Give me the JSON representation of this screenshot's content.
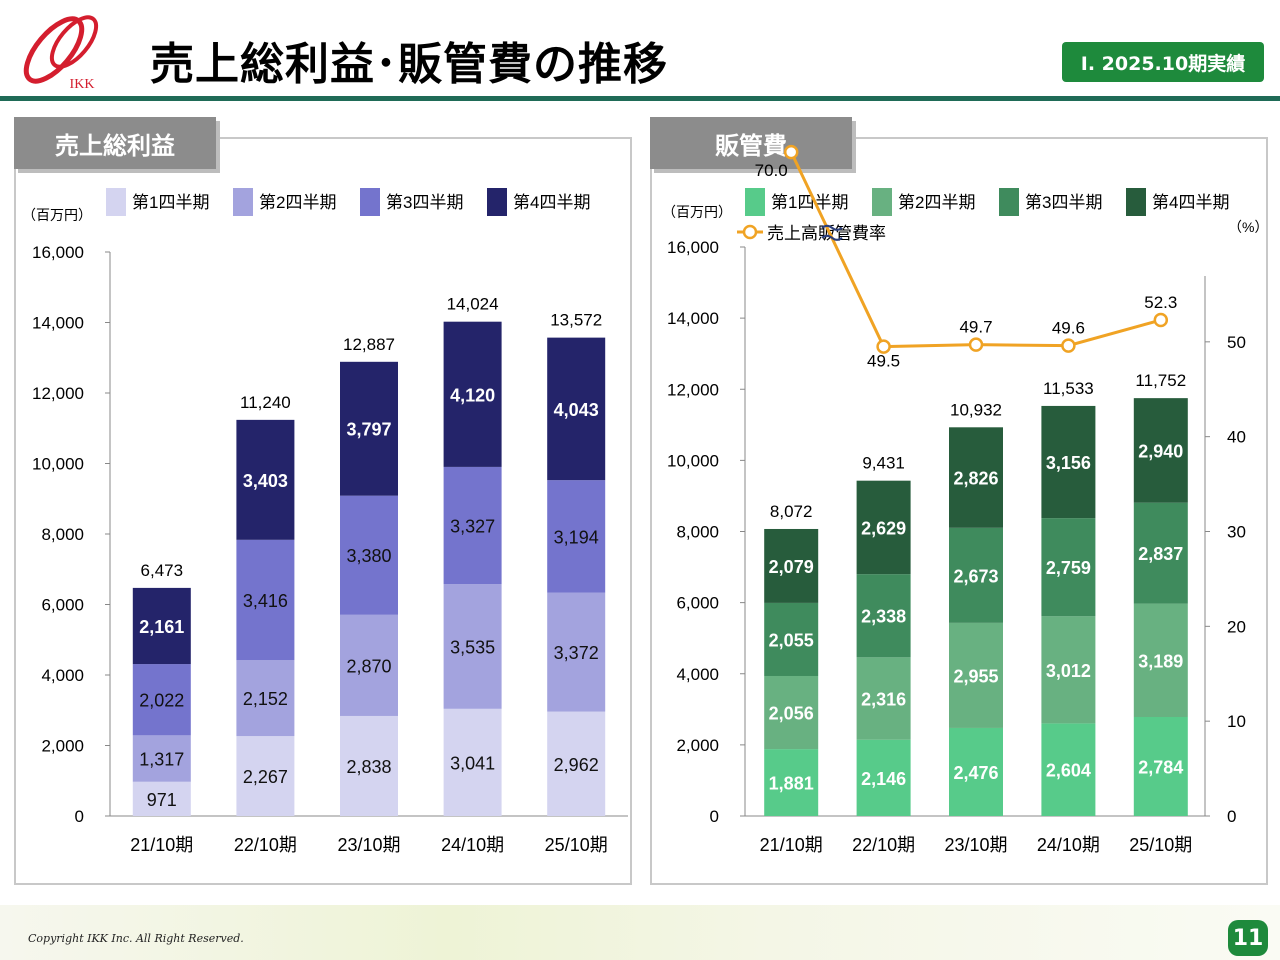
{
  "logo": {
    "text": "IKK"
  },
  "header": {
    "title": "売上総利益･販管費の推移",
    "badge": "Ⅰ. 2025.10期実績"
  },
  "footer": {
    "copyright": "Copyright IKK Inc. All Right Reserved.",
    "page_number": "11"
  },
  "colors": {
    "gross": [
      "#d4d4f0",
      "#a3a3de",
      "#7474cd",
      "#24246a"
    ],
    "sga": [
      "#57cb8a",
      "#68b181",
      "#3f8b5d",
      "#275c3c"
    ],
    "ratio_line": "#f0a324",
    "accent": "#1e8a3c"
  },
  "chart_data": [
    {
      "type": "bar",
      "title": "売上総利益",
      "unit_label": "（百万円）",
      "stacked": true,
      "categories": [
        "21/10期",
        "22/10期",
        "23/10期",
        "24/10期",
        "25/10期"
      ],
      "series": [
        {
          "name": "第1四半期",
          "values": [
            971,
            2267,
            2838,
            3041,
            2962
          ]
        },
        {
          "name": "第2四半期",
          "values": [
            1317,
            2152,
            2870,
            3535,
            3372
          ]
        },
        {
          "name": "第3四半期",
          "values": [
            2022,
            3416,
            3380,
            3327,
            3194
          ]
        },
        {
          "name": "第4四半期",
          "values": [
            2161,
            3403,
            3797,
            4120,
            4043
          ]
        }
      ],
      "totals": [
        6473,
        11240,
        12887,
        14024,
        13572
      ],
      "ylim": [
        0,
        16000
      ],
      "yticks": [
        0,
        2000,
        4000,
        6000,
        8000,
        10000,
        12000,
        14000,
        16000
      ],
      "legend": "top"
    },
    {
      "type": "bar",
      "title": "販管費",
      "unit_label": "（百万円）",
      "right_unit_label": "（%）",
      "stacked": true,
      "categories": [
        "21/10期",
        "22/10期",
        "23/10期",
        "24/10期",
        "25/10期"
      ],
      "series": [
        {
          "name": "第1四半期",
          "values": [
            1881,
            2146,
            2476,
            2604,
            2784
          ]
        },
        {
          "name": "第2四半期",
          "values": [
            2056,
            2316,
            2955,
            3012,
            3189
          ]
        },
        {
          "name": "第3四半期",
          "values": [
            2055,
            2338,
            2673,
            2759,
            2837
          ]
        },
        {
          "name": "第4四半期",
          "values": [
            2079,
            2629,
            2826,
            3156,
            2940
          ]
        }
      ],
      "totals": [
        8072,
        9431,
        10932,
        11533,
        11752
      ],
      "ylim": [
        0,
        16000
      ],
      "yticks": [
        0,
        2000,
        4000,
        6000,
        8000,
        10000,
        12000,
        14000,
        16000
      ],
      "line": {
        "name": "売上高販管費率",
        "values": [
          70.0,
          49.5,
          49.7,
          49.6,
          52.3
        ],
        "labels": [
          "70.0",
          "49.5",
          "49.7",
          "49.6",
          "52.3"
        ]
      },
      "y2lim": [
        0,
        60
      ],
      "y2ticks": [
        0,
        10,
        20,
        30,
        40,
        50
      ],
      "legend": "top"
    }
  ]
}
